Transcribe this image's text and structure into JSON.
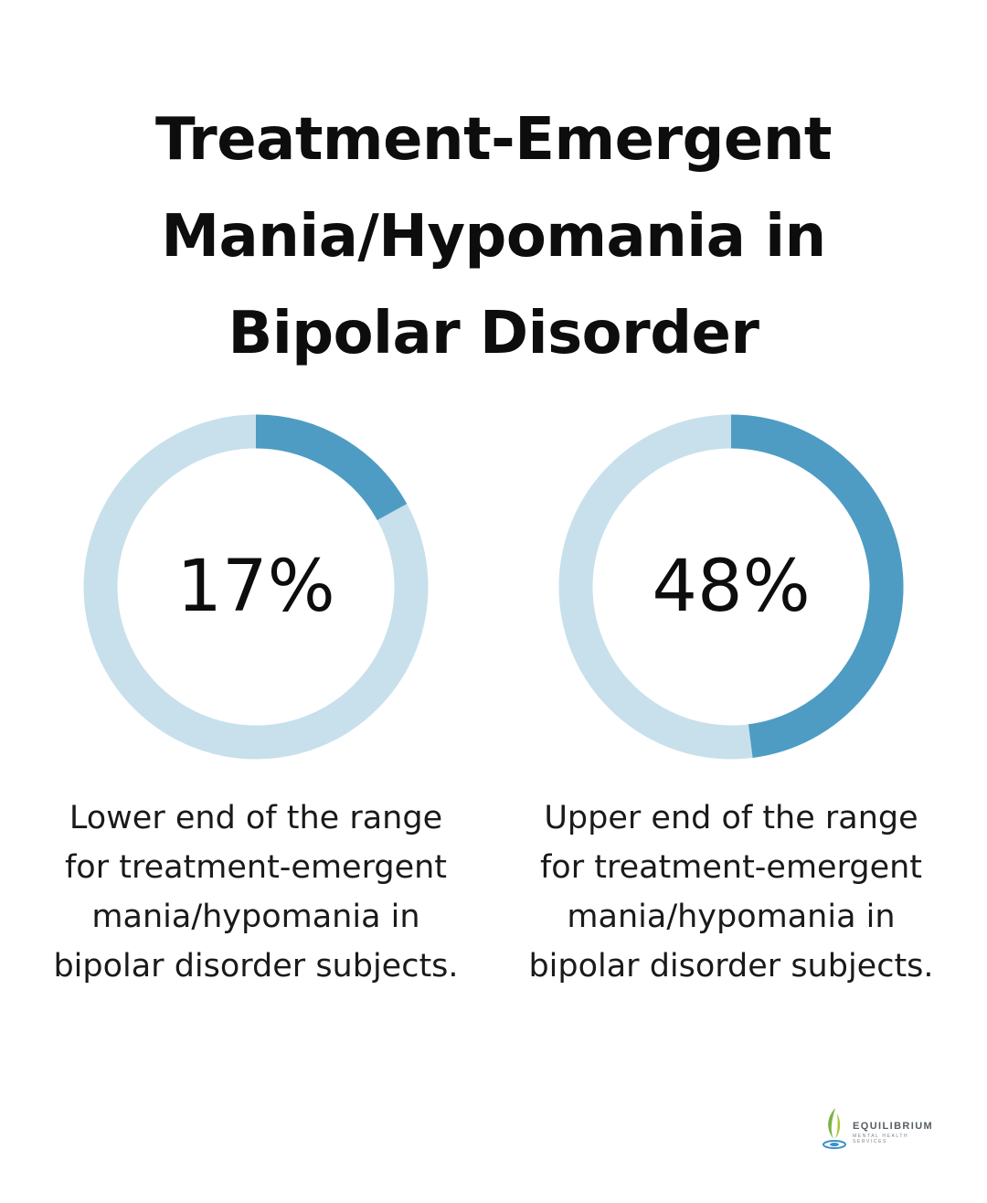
{
  "title": {
    "lines": [
      "Treatment-Emergent",
      "Mania/Hypomania in",
      "Bipolar Disorder"
    ]
  },
  "colors": {
    "track": "#c8e0ec",
    "fill": "#4e9cc3",
    "text": "#0d0d0d"
  },
  "chart_data": [
    {
      "type": "pie",
      "values": [
        17
      ],
      "max": 100,
      "label": "17%",
      "description_lines": [
        "Lower end of the range",
        "for treatment-emergent",
        "mania/hypomania in",
        "bipolar disorder subjects."
      ]
    },
    {
      "type": "pie",
      "values": [
        48
      ],
      "max": 100,
      "label": "48%",
      "description_lines": [
        "Upper end of the range",
        "for treatment-emergent",
        "mania/hypomania in",
        "bipolar disorder subjects."
      ]
    }
  ],
  "logo": {
    "name": "EQUILIBRIUM",
    "tagline": "MENTAL HEALTH SERVICES",
    "icon": "leaf-drop-icon"
  }
}
